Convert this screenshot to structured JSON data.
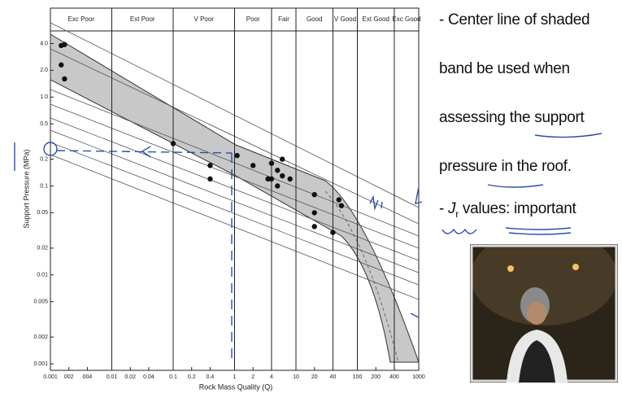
{
  "chart_data": {
    "type": "scatter",
    "x_label": "Rock Mass Quality (Q)",
    "y_label": "Support Pressure (MPa)",
    "xscale": "log",
    "yscale": "log",
    "xlim": [
      0.001,
      1000
    ],
    "ylim": [
      0.001,
      10
    ],
    "xticks": [
      0.001,
      {
        "value": 0.002,
        "label": "002"
      },
      {
        "value": 0.004,
        "label": "004"
      },
      0.01,
      0.02,
      0.04,
      0.1,
      0.2,
      0.4,
      1,
      2,
      4,
      10,
      20,
      40,
      100,
      200,
      400,
      1000
    ],
    "yticks": [
      {
        "value": 4,
        "label": "4.0"
      },
      {
        "value": 2,
        "label": "2.0"
      },
      {
        "value": 1,
        "label": "1.0"
      },
      0.5,
      0.2,
      0.1,
      0.05,
      0.02,
      0.01,
      0.005,
      0.002,
      0.001
    ],
    "classes": [
      "Exc Poor",
      "Ext Poor",
      "V Poor",
      "Poor",
      "Fair",
      "Good",
      "V Good",
      "Ext Good",
      "Exc Good"
    ],
    "class_bounds": [
      0.001,
      0.01,
      0.1,
      1,
      4,
      10,
      40,
      100,
      400,
      1000
    ],
    "color": "#111111",
    "x": [
      0.0015,
      0.0017,
      0.0015,
      0.0017,
      0.1,
      0.4,
      0.4,
      1.1,
      2,
      3.5,
      4,
      4,
      5,
      5,
      6,
      6,
      8,
      20,
      20,
      20,
      40,
      50,
      55
    ],
    "y": [
      3.8,
      3.9,
      2.3,
      1.6,
      0.3,
      0.17,
      0.12,
      0.22,
      0.17,
      0.12,
      0.18,
      0.12,
      0.15,
      0.1,
      0.2,
      0.13,
      0.12,
      0.08,
      0.05,
      0.035,
      0.03,
      0.07,
      0.06
    ]
  },
  "notes": [
    "- Center line of shaded",
    "band be used when",
    "assessing the support",
    "pressure in the roof."
  ],
  "jr_note": [
    "- ",
    "J",
    "r",
    " values: important"
  ]
}
